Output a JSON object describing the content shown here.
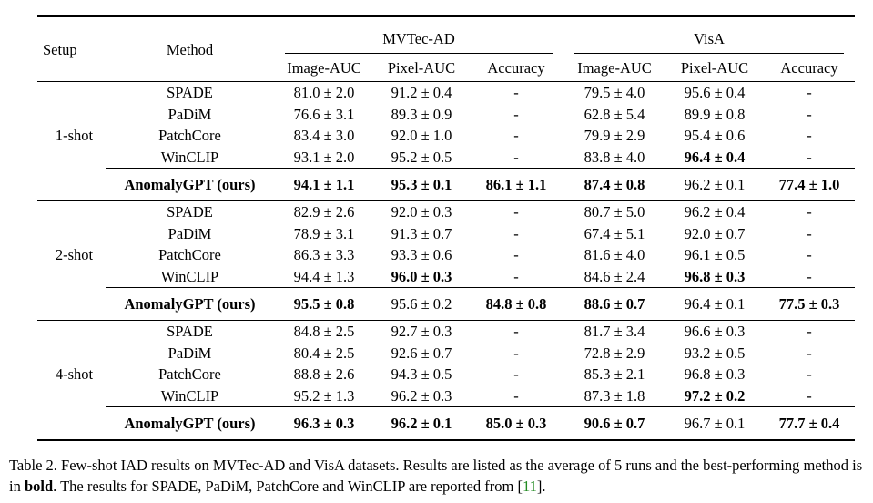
{
  "table": {
    "header": {
      "setup": "Setup",
      "method": "Method",
      "dataset1": "MVTec-AD",
      "dataset2": "VisA",
      "subcolumns": [
        "Image-AUC",
        "Pixel-AUC",
        "Accuracy",
        "Image-AUC",
        "Pixel-AUC",
        "Accuracy"
      ]
    },
    "groups": [
      {
        "setup": "1-shot",
        "rows": [
          {
            "method": "SPADE",
            "values": [
              {
                "v": "81.0 ± 2.0",
                "b": false
              },
              {
                "v": "91.2 ± 0.4",
                "b": false
              },
              {
                "v": "-",
                "b": false
              },
              {
                "v": "79.5 ± 4.0",
                "b": false
              },
              {
                "v": "95.6 ± 0.4",
                "b": false
              },
              {
                "v": "-",
                "b": false
              }
            ]
          },
          {
            "method": "PaDiM",
            "values": [
              {
                "v": "76.6 ± 3.1",
                "b": false
              },
              {
                "v": "89.3 ± 0.9",
                "b": false
              },
              {
                "v": "-",
                "b": false
              },
              {
                "v": "62.8 ± 5.4",
                "b": false
              },
              {
                "v": "89.9 ± 0.8",
                "b": false
              },
              {
                "v": "-",
                "b": false
              }
            ]
          },
          {
            "method": "PatchCore",
            "values": [
              {
                "v": "83.4 ± 3.0",
                "b": false
              },
              {
                "v": "92.0 ± 1.0",
                "b": false
              },
              {
                "v": "-",
                "b": false
              },
              {
                "v": "79.9 ± 2.9",
                "b": false
              },
              {
                "v": "95.4 ± 0.6",
                "b": false
              },
              {
                "v": "-",
                "b": false
              }
            ]
          },
          {
            "method": "WinCLIP",
            "values": [
              {
                "v": "93.1 ± 2.0",
                "b": false
              },
              {
                "v": "95.2 ± 0.5",
                "b": false
              },
              {
                "v": "-",
                "b": false
              },
              {
                "v": "83.8 ± 4.0",
                "b": false
              },
              {
                "v": "96.4 ± 0.4",
                "b": true
              },
              {
                "v": "-",
                "b": false
              }
            ]
          }
        ],
        "ours": {
          "method": "AnomalyGPT (ours)",
          "values": [
            {
              "v": "94.1 ± 1.1",
              "b": true
            },
            {
              "v": "95.3 ± 0.1",
              "b": true
            },
            {
              "v": "86.1 ± 1.1",
              "b": true
            },
            {
              "v": "87.4 ± 0.8",
              "b": true
            },
            {
              "v": "96.2 ± 0.1",
              "b": false
            },
            {
              "v": "77.4 ± 1.0",
              "b": true
            }
          ]
        }
      },
      {
        "setup": "2-shot",
        "rows": [
          {
            "method": "SPADE",
            "values": [
              {
                "v": "82.9 ± 2.6",
                "b": false
              },
              {
                "v": "92.0 ± 0.3",
                "b": false
              },
              {
                "v": "-",
                "b": false
              },
              {
                "v": "80.7 ± 5.0",
                "b": false
              },
              {
                "v": "96.2 ± 0.4",
                "b": false
              },
              {
                "v": "-",
                "b": false
              }
            ]
          },
          {
            "method": "PaDiM",
            "values": [
              {
                "v": "78.9 ± 3.1",
                "b": false
              },
              {
                "v": "91.3 ± 0.7",
                "b": false
              },
              {
                "v": "-",
                "b": false
              },
              {
                "v": "67.4 ± 5.1",
                "b": false
              },
              {
                "v": "92.0 ± 0.7",
                "b": false
              },
              {
                "v": "-",
                "b": false
              }
            ]
          },
          {
            "method": "PatchCore",
            "values": [
              {
                "v": "86.3 ± 3.3",
                "b": false
              },
              {
                "v": "93.3 ± 0.6",
                "b": false
              },
              {
                "v": "-",
                "b": false
              },
              {
                "v": "81.6 ± 4.0",
                "b": false
              },
              {
                "v": "96.1 ± 0.5",
                "b": false
              },
              {
                "v": "-",
                "b": false
              }
            ]
          },
          {
            "method": "WinCLIP",
            "values": [
              {
                "v": "94.4 ± 1.3",
                "b": false
              },
              {
                "v": "96.0 ± 0.3",
                "b": true
              },
              {
                "v": "-",
                "b": false
              },
              {
                "v": "84.6 ± 2.4",
                "b": false
              },
              {
                "v": "96.8 ± 0.3",
                "b": true
              },
              {
                "v": "-",
                "b": false
              }
            ]
          }
        ],
        "ours": {
          "method": "AnomalyGPT (ours)",
          "values": [
            {
              "v": "95.5 ± 0.8",
              "b": true
            },
            {
              "v": "95.6 ± 0.2",
              "b": false
            },
            {
              "v": "84.8 ± 0.8",
              "b": true
            },
            {
              "v": "88.6 ± 0.7",
              "b": true
            },
            {
              "v": "96.4 ± 0.1",
              "b": false
            },
            {
              "v": "77.5 ± 0.3",
              "b": true
            }
          ]
        }
      },
      {
        "setup": "4-shot",
        "rows": [
          {
            "method": "SPADE",
            "values": [
              {
                "v": "84.8 ± 2.5",
                "b": false
              },
              {
                "v": "92.7 ± 0.3",
                "b": false
              },
              {
                "v": "-",
                "b": false
              },
              {
                "v": "81.7 ± 3.4",
                "b": false
              },
              {
                "v": "96.6 ± 0.3",
                "b": false
              },
              {
                "v": "-",
                "b": false
              }
            ]
          },
          {
            "method": "PaDiM",
            "values": [
              {
                "v": "80.4 ± 2.5",
                "b": false
              },
              {
                "v": "92.6 ± 0.7",
                "b": false
              },
              {
                "v": "-",
                "b": false
              },
              {
                "v": "72.8 ± 2.9",
                "b": false
              },
              {
                "v": "93.2 ± 0.5",
                "b": false
              },
              {
                "v": "-",
                "b": false
              }
            ]
          },
          {
            "method": "PatchCore",
            "values": [
              {
                "v": "88.8 ± 2.6",
                "b": false
              },
              {
                "v": "94.3 ± 0.5",
                "b": false
              },
              {
                "v": "-",
                "b": false
              },
              {
                "v": "85.3 ± 2.1",
                "b": false
              },
              {
                "v": "96.8 ± 0.3",
                "b": false
              },
              {
                "v": "-",
                "b": false
              }
            ]
          },
          {
            "method": "WinCLIP",
            "values": [
              {
                "v": "95.2 ± 1.3",
                "b": false
              },
              {
                "v": "96.2 ± 0.3",
                "b": false
              },
              {
                "v": "-",
                "b": false
              },
              {
                "v": "87.3 ± 1.8",
                "b": false
              },
              {
                "v": "97.2 ± 0.2",
                "b": true
              },
              {
                "v": "-",
                "b": false
              }
            ]
          }
        ],
        "ours": {
          "method": "AnomalyGPT (ours)",
          "values": [
            {
              "v": "96.3 ± 0.3",
              "b": true
            },
            {
              "v": "96.2 ± 0.1",
              "b": true
            },
            {
              "v": "85.0 ± 0.3",
              "b": true
            },
            {
              "v": "90.6 ± 0.7",
              "b": true
            },
            {
              "v": "96.7 ± 0.1",
              "b": false
            },
            {
              "v": "77.7 ± 0.4",
              "b": true
            }
          ]
        }
      }
    ]
  },
  "caption": {
    "cite_color": "#228B22",
    "parts": [
      {
        "text": "Table 2. Few-shot IAD results on MVTec-AD and VisA datasets. Results are listed as the average of 5 runs and the best-performing method is in ",
        "style": "normal"
      },
      {
        "text": "bold",
        "style": "bold"
      },
      {
        "text": ". The results for SPADE, PaDiM, PatchCore and WinCLIP are reported from [",
        "style": "normal"
      },
      {
        "text": "11",
        "style": "cite"
      },
      {
        "text": "].",
        "style": "normal"
      }
    ]
  }
}
